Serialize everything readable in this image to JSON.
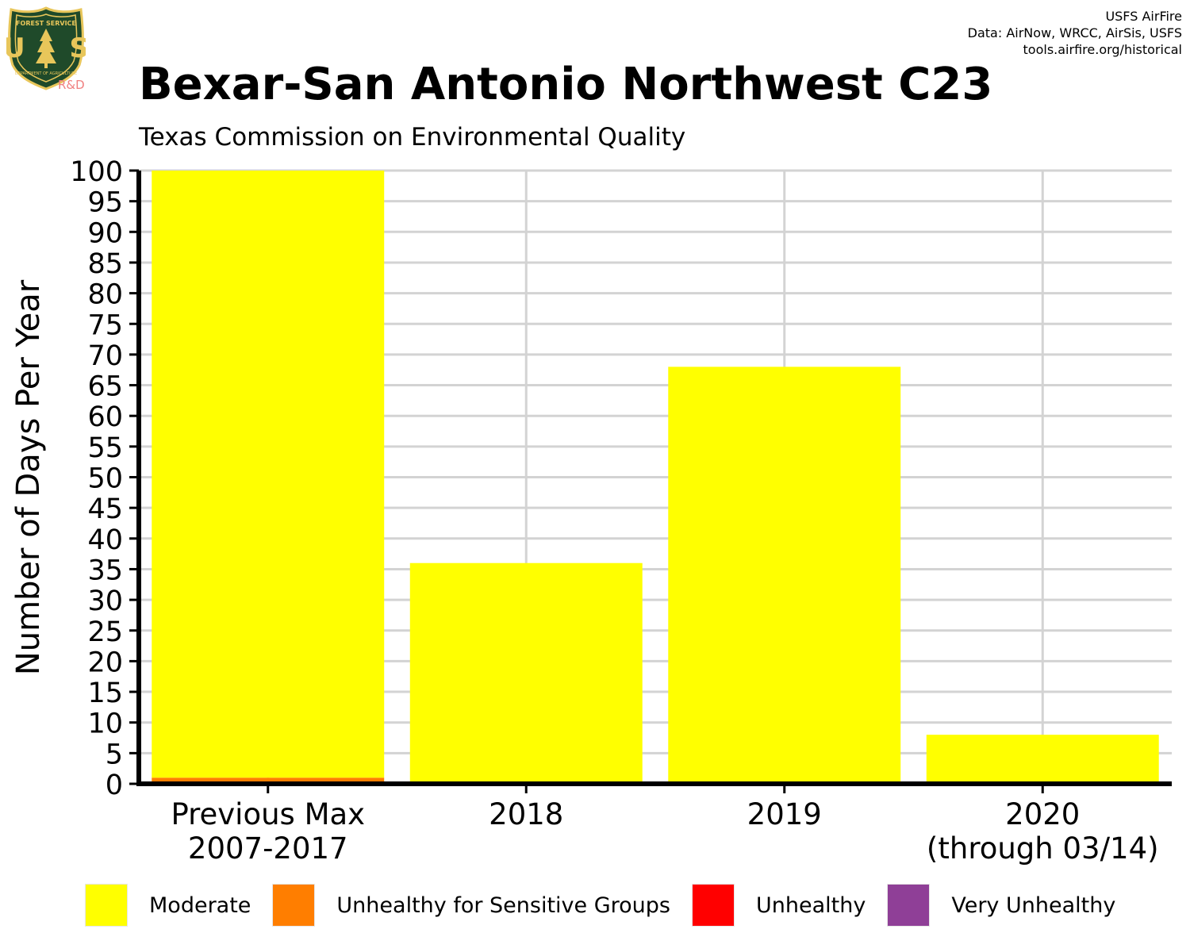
{
  "header": {
    "title": "Bexar-San Antonio Northwest C23",
    "subtitle": "Texas Commission on Environmental Quality",
    "credits": [
      "USFS AirFire",
      "Data: AirNow, WRCC, AirSis, USFS",
      "tools.airfire.org/historical"
    ]
  },
  "logo": {
    "top_text": "FOREST SERVICE",
    "letters": "U S",
    "bottom_text": "DEPARTMENT OF AGRICULTURE",
    "rd": "R&D",
    "icon": "usfs-shield-icon"
  },
  "chart_data": {
    "type": "bar",
    "stacked": true,
    "categories": [
      [
        "Previous Max",
        "2007-2017"
      ],
      [
        "2018"
      ],
      [
        "2019"
      ],
      [
        "2020",
        "(through 03/14)"
      ]
    ],
    "series": [
      {
        "name": "Moderate",
        "color": "#FFFF00",
        "values": [
          100,
          36,
          68,
          8
        ]
      },
      {
        "name": "Unhealthy for Sensitive Groups",
        "color": "#FF7E00",
        "values": [
          1,
          0,
          0,
          0
        ]
      },
      {
        "name": "Unhealthy",
        "color": "#FF0000",
        "values": [
          0,
          0,
          0,
          0
        ]
      },
      {
        "name": "Very Unhealthy",
        "color": "#8F3F97",
        "values": [
          0,
          0,
          0,
          0
        ]
      }
    ],
    "ylabel": "Number of Days Per Year",
    "ylim": [
      0,
      100
    ],
    "yticks": [
      0,
      5,
      10,
      15,
      20,
      25,
      30,
      35,
      40,
      45,
      50,
      55,
      60,
      65,
      70,
      75,
      80,
      85,
      90,
      95,
      100
    ],
    "grid": true,
    "legend_position": "bottom"
  }
}
